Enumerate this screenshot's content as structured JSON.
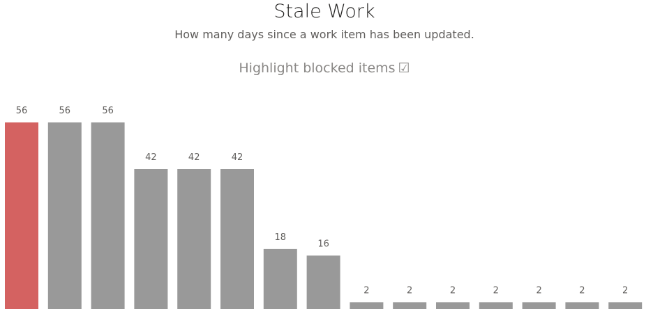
{
  "header": {
    "title": "Stale Work",
    "subtitle": "How many days since a work item has been updated.",
    "toggle_label": "Highlight blocked items",
    "toggle_glyph": "☑"
  },
  "colors": {
    "blocked": "#d46261",
    "normal": "#999999",
    "label": "#605e5c"
  },
  "chart_data": {
    "type": "bar",
    "title": "Stale Work",
    "subtitle": "How many days since a work item has been updated.",
    "xlabel": "",
    "ylabel": "",
    "values": [
      56,
      56,
      56,
      42,
      42,
      42,
      18,
      16,
      2,
      2,
      2,
      2,
      2,
      2,
      2
    ],
    "blocked": [
      true,
      false,
      false,
      false,
      false,
      false,
      false,
      false,
      false,
      false,
      false,
      false,
      false,
      false,
      false
    ],
    "data_labels": true,
    "grid": false,
    "ylim": [
      0,
      56
    ]
  }
}
